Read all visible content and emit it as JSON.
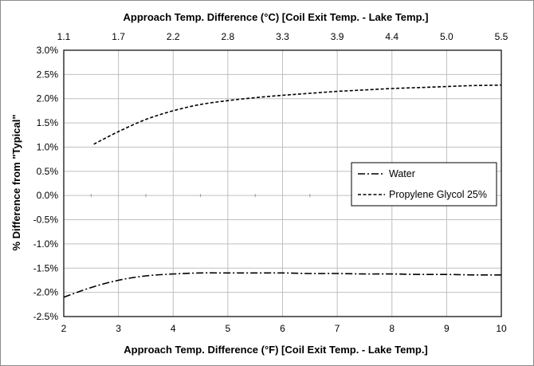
{
  "chart_data": {
    "type": "line",
    "title": "",
    "xlabel": "Approach Temp. Difference (°F) [Coil Exit Temp. - Lake Temp.]",
    "x2label": "Approach Temp. Difference (°C) [Coil Exit Temp. - Lake Temp.]",
    "ylabel": "% Difference from \"Typical\"",
    "xlim": [
      2,
      10
    ],
    "ylim": [
      -2.5,
      3.0
    ],
    "grid": true,
    "legend_position": "right-middle",
    "x_ticks": [
      2,
      3,
      4,
      5,
      6,
      7,
      8,
      9,
      10
    ],
    "x_tick_labels": [
      "2",
      "3",
      "4",
      "5",
      "6",
      "7",
      "8",
      "9",
      "10"
    ],
    "x2_ticks": [
      2,
      3,
      4,
      5,
      6,
      7,
      8,
      9,
      10
    ],
    "x2_tick_labels": [
      "1.1",
      "1.7",
      "2.2",
      "2.8",
      "3.3",
      "3.9",
      "4.4",
      "5.0",
      "5.5"
    ],
    "y_ticks": [
      -2.5,
      -2.0,
      -1.5,
      -1.0,
      -0.5,
      0.0,
      0.5,
      1.0,
      1.5,
      2.0,
      2.5,
      3.0
    ],
    "y_tick_labels": [
      "-2.5%",
      "-2.0%",
      "-1.5%",
      "-1.0%",
      "-0.5%",
      "0.0%",
      "0.5%",
      "1.0%",
      "1.5%",
      "2.0%",
      "2.5%",
      "3.0%"
    ],
    "series": [
      {
        "name": "Water",
        "style": "dash-dot",
        "x": [
          2.0,
          2.5,
          3.0,
          3.5,
          4.0,
          4.5,
          5.0,
          5.5,
          6.0,
          6.5,
          7.0,
          7.5,
          8.0,
          8.5,
          9.0,
          9.5,
          10.0
        ],
        "y": [
          -2.1,
          -1.9,
          -1.75,
          -1.66,
          -1.62,
          -1.6,
          -1.6,
          -1.6,
          -1.6,
          -1.61,
          -1.61,
          -1.62,
          -1.62,
          -1.63,
          -1.63,
          -1.64,
          -1.64
        ]
      },
      {
        "name": "Propylene Glycol 25%",
        "style": "dashed",
        "x": [
          2.55,
          3.0,
          3.5,
          4.0,
          4.5,
          5.0,
          5.5,
          6.0,
          6.5,
          7.0,
          7.5,
          8.0,
          8.5,
          9.0,
          9.5,
          10.0
        ],
        "y": [
          1.06,
          1.32,
          1.57,
          1.75,
          1.88,
          1.96,
          2.02,
          2.07,
          2.11,
          2.15,
          2.18,
          2.21,
          2.23,
          2.25,
          2.27,
          2.28
        ]
      }
    ]
  }
}
